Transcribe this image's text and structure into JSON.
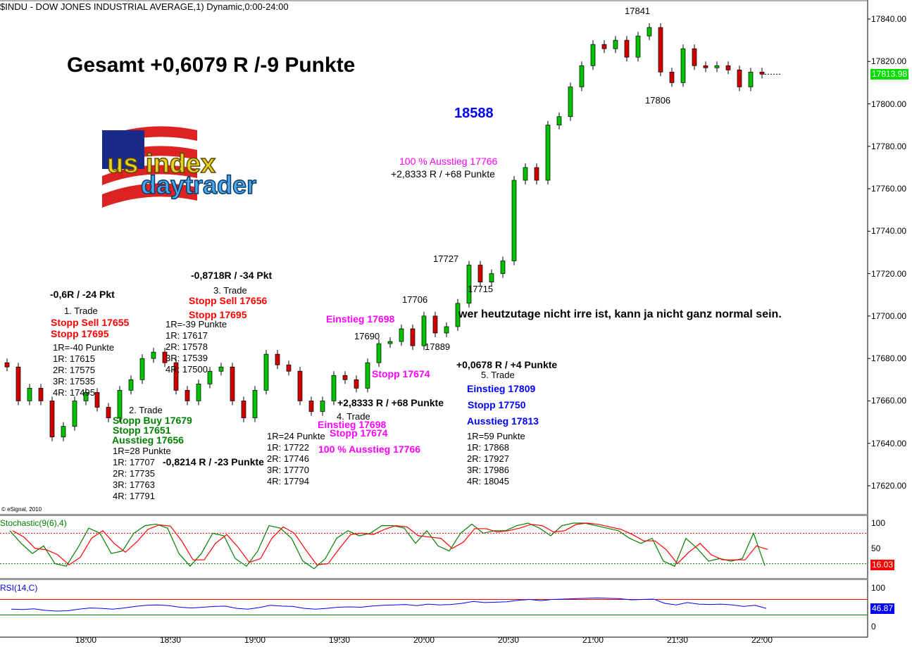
{
  "header": {
    "title": "$INDU - DOW JONES INDUSTRIAL AVERAGE,1) Dynamic,0:00-24:00"
  },
  "logo": {
    "text_top": "us index",
    "text_bottom": "daytrader"
  },
  "copyright": "© eSignal, 2010",
  "colors": {
    "up": "#00c000",
    "down": "#d00000",
    "price_badge": "#00dd00",
    "stoch_k": "#008000",
    "stoch_d": "#ff0000",
    "rsi": "#0000ff",
    "annot_red": "#ff0000",
    "annot_green": "#008000",
    "annot_magenta": "#ff00ff",
    "annot_blue": "#0000ff"
  },
  "annotations": {
    "total": "Gesamt +0,6079 R /-9 Punkte",
    "big_number": "18588",
    "quote": "wer heutzutage nicht irre ist, kann ja nicht ganz normal sein.",
    "levels": {
      "h1": "17841",
      "l1": "17806",
      "h2": "17727",
      "l2": "17715",
      "h3": "17706",
      "h4": "17690",
      "l3": "17889"
    },
    "trade1": {
      "result": "-0,6R / -24 Pkt",
      "title": "1. Trade",
      "entry": "Stopp Sell 17655",
      "stop": "Stopp 17695",
      "targets": [
        "1R=-40 Punkte",
        "1R: 17615",
        "2R: 17575",
        "3R: 17535",
        "4R: 17495"
      ]
    },
    "trade2": {
      "title": "2. Trade",
      "entry": "Stopp Buy 17679",
      "stop": "Stopp 17651",
      "exit": "Ausstieg 17656",
      "targets": [
        "1R=28 Punkte",
        "1R: 17707",
        "2R: 17735",
        "3R: 17763",
        "4R: 17791"
      ],
      "result": "-0,8214 R / -23 Punkte"
    },
    "trade3": {
      "result": "-0,8718R / -34 Pkt",
      "title": "3. Trade",
      "entry": "Stopp Sell 17656",
      "stop": "Stopp 17695",
      "targets": [
        "1R=-39 Punkte",
        "1R: 17617",
        "2R: 17578",
        "3R: 17539",
        "4R: 17500"
      ]
    },
    "trade4": {
      "entry_top": "Einstieg 17698",
      "stop_mid": "Stopp 17674",
      "result": "+2,8333 R / +68 Punkte",
      "title": "4. Trade",
      "entry": "Einstieg 17698",
      "stop": "Stopp 17674",
      "exit": "100 % Ausstieg 17766",
      "targets": [
        "1R=24 Punkte",
        "1R: 17722",
        "2R: 17746",
        "3R: 17770",
        "4R: 17794"
      ],
      "exit_top": "100 % Ausstieg 17766",
      "result_top": "+2,8333 R / +68 Punkte"
    },
    "trade5": {
      "result": "+0,0678 R / +4 Punkte",
      "title": "5. Trade",
      "entry": "Einstieg 17809",
      "stop": "Stopp 17750",
      "exit": "Ausstieg 17813",
      "targets": [
        "1R=59 Punkte",
        "1R: 17868",
        "2R: 17927",
        "3R: 17986",
        "4R: 18045"
      ]
    }
  },
  "chart_data": [
    {
      "type": "candlestick",
      "title": "$INDU - DOW JONES INDUSTRIAL AVERAGE,1) Dynamic,0:00-24:00",
      "x_start": "17:30",
      "x_step_minutes": 4,
      "x_ticks": [
        "18:00",
        "18:30",
        "19:00",
        "19:30",
        "20:00",
        "20:30",
        "21:00",
        "21:30",
        "22:00"
      ],
      "ylim": [
        17610,
        17848
      ],
      "y_ticks": [
        "17620.00",
        "17640.00",
        "17660.00",
        "17680.00",
        "17700.00",
        "17720.00",
        "17740.00",
        "17760.00",
        "17780.00",
        "17800.00",
        "17820.00",
        "17840.00"
      ],
      "last_price": "17813.98",
      "close": [
        17676,
        17660,
        17666,
        17660,
        17643,
        17648,
        17660,
        17664,
        17657,
        17652,
        17665,
        17670,
        17680,
        17683,
        17678,
        17665,
        17660,
        17668,
        17674,
        17676,
        17660,
        17652,
        17665,
        17682,
        17677,
        17674,
        17660,
        17655,
        17660,
        17672,
        17670,
        17666,
        17678,
        17687,
        17688,
        17694,
        17686,
        17700,
        17692,
        17695,
        17706,
        17724,
        17716,
        17720,
        17726,
        17764,
        17770,
        17764,
        17790,
        17794,
        17808,
        17818,
        17828,
        17826,
        17830,
        17822,
        17832,
        17836,
        17815,
        17810,
        17826,
        17818,
        17817,
        17818,
        17816,
        17808,
        17815,
        17814
      ]
    },
    {
      "type": "line",
      "title": "Stochastic(9(6),4)",
      "ylim": [
        0,
        100
      ],
      "y_ticks": [
        "100",
        "50"
      ],
      "levels": [
        80,
        20
      ],
      "last_value": "16.03",
      "k": [
        85,
        60,
        40,
        55,
        20,
        15,
        50,
        90,
        80,
        40,
        45,
        80,
        95,
        98,
        90,
        40,
        15,
        40,
        80,
        75,
        30,
        15,
        45,
        95,
        90,
        70,
        25,
        10,
        30,
        70,
        85,
        75,
        80,
        95,
        95,
        90,
        60,
        85,
        55,
        45,
        80,
        98,
        80,
        85,
        85,
        95,
        100,
        90,
        75,
        95,
        100,
        100,
        95,
        90,
        85,
        70,
        60,
        70,
        25,
        15,
        70,
        50,
        25,
        30,
        25,
        30,
        80,
        16
      ]
    },
    {
      "type": "line",
      "title": "RSI(14,C)",
      "ylim": [
        0,
        100
      ],
      "y_ticks": [
        "100",
        "0"
      ],
      "levels": [
        70,
        30
      ],
      "last_value": "46.87",
      "values": [
        45,
        44,
        46,
        42,
        40,
        41,
        45,
        48,
        47,
        45,
        48,
        52,
        55,
        56,
        54,
        50,
        48,
        50,
        52,
        53,
        47,
        45,
        49,
        55,
        53,
        52,
        47,
        45,
        47,
        50,
        51,
        50,
        53,
        55,
        56,
        57,
        54,
        58,
        56,
        57,
        60,
        65,
        62,
        63,
        64,
        68,
        70,
        67,
        70,
        71,
        72,
        73,
        74,
        73,
        72,
        69,
        70,
        71,
        60,
        56,
        62,
        58,
        57,
        58,
        56,
        52,
        55,
        47
      ]
    }
  ]
}
